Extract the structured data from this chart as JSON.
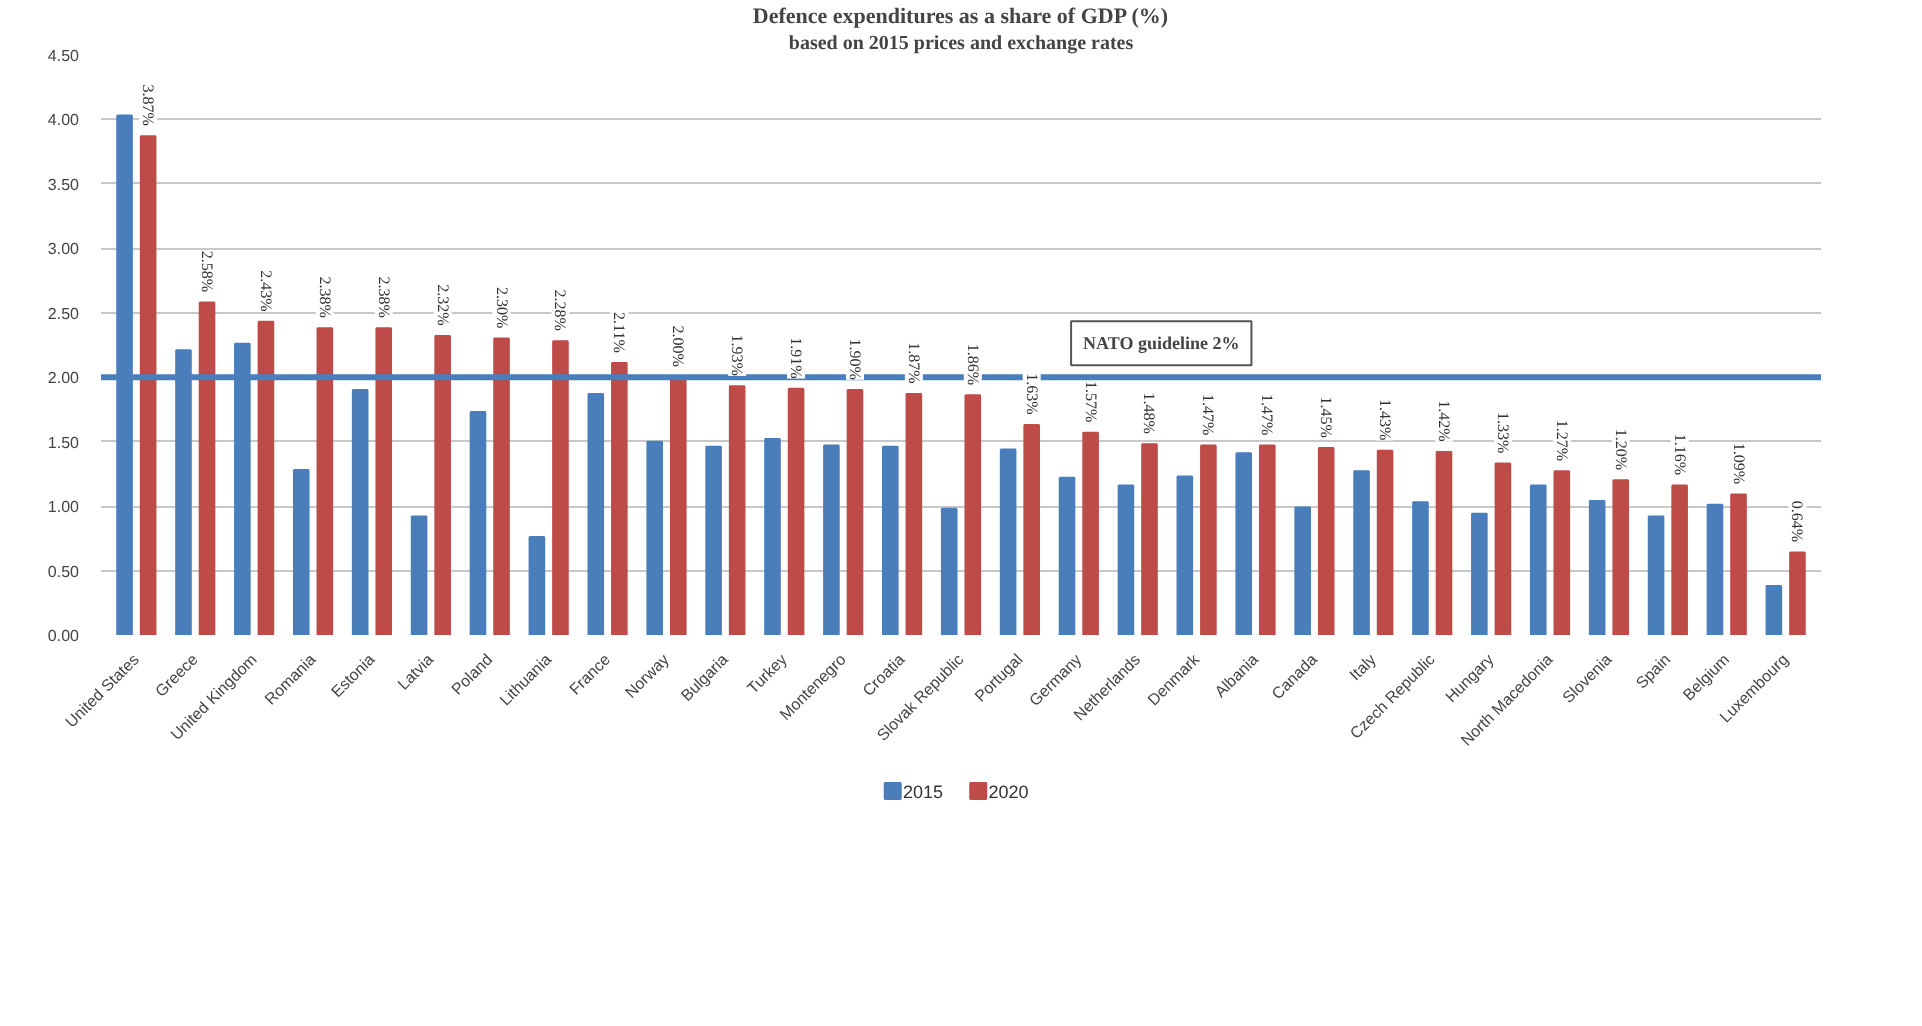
{
  "chart_data": {
    "type": "bar",
    "title": "Defence expenditures as a share of GDP (%)",
    "subtitle": "based on 2015 prices and exchange rates",
    "categories": [
      "United States",
      "Greece",
      "United Kingdom",
      "Romania",
      "Estonia",
      "Latvia",
      "Poland",
      "Lithuania",
      "France",
      "Norway",
      "Bulgaria",
      "Turkey",
      "Montenegro",
      "Croatia",
      "Slovak Republic",
      "Portugal",
      "Germany",
      "Netherlands",
      "Denmark",
      "Albania",
      "Canada",
      "Italy",
      "Czech Republic",
      "Hungary",
      "North Macedonia",
      "Slovenia",
      "Spain",
      "Belgium",
      "Luxembourg"
    ],
    "series": [
      {
        "name": "2015",
        "color": "#4a7ebb",
        "values": [
          4.03,
          2.21,
          2.26,
          1.28,
          1.9,
          0.92,
          1.73,
          0.76,
          1.87,
          1.5,
          1.46,
          1.52,
          1.47,
          1.46,
          0.98,
          1.44,
          1.22,
          1.16,
          1.23,
          1.41,
          0.99,
          1.27,
          1.03,
          0.94,
          1.16,
          1.04,
          0.92,
          1.01,
          0.38
        ]
      },
      {
        "name": "2020",
        "color": "#be4b48",
        "values": [
          3.87,
          2.58,
          2.43,
          2.38,
          2.38,
          2.32,
          2.3,
          2.28,
          2.11,
          2.0,
          1.93,
          1.91,
          1.9,
          1.87,
          1.86,
          1.63,
          1.57,
          1.48,
          1.47,
          1.47,
          1.45,
          1.43,
          1.42,
          1.33,
          1.27,
          1.2,
          1.16,
          1.09,
          0.64
        ],
        "value_labels": [
          "3.87%",
          "2.58%",
          "2.43%",
          "2.38%",
          "2.38%",
          "2.32%",
          "2.30%",
          "2.28%",
          "2.11%",
          "2.00%",
          "1.93%",
          "1.91%",
          "1.90%",
          "1.87%",
          "1.86%",
          "1.63%",
          "1.57%",
          "1.48%",
          "1.47%",
          "1.47%",
          "1.45%",
          "1.43%",
          "1.42%",
          "1.33%",
          "1.27%",
          "1.20%",
          "1.16%",
          "1.09%",
          "0.64%"
        ]
      }
    ],
    "ylim": [
      0,
      4.5
    ],
    "yticks": [
      {
        "value": 0,
        "label": "0.00"
      },
      {
        "value": 0.5,
        "label": "0.50"
      },
      {
        "value": 1,
        "label": "1.00"
      },
      {
        "value": 1.5,
        "label": "1.50"
      },
      {
        "value": 2,
        "label": "2.00"
      },
      {
        "value": 2.5,
        "label": "2.50"
      },
      {
        "value": 3,
        "label": "3.00"
      },
      {
        "value": 3.5,
        "label": "3.50"
      },
      {
        "value": 4,
        "label": "4.00"
      },
      {
        "value": 4.5,
        "label": "4.50"
      }
    ],
    "ref_lines": [
      {
        "axis": "y",
        "value": 2,
        "label": "NATO guideline 2%",
        "color": "#4a7ebb"
      }
    ],
    "grid": "y",
    "legend": "bottom"
  }
}
